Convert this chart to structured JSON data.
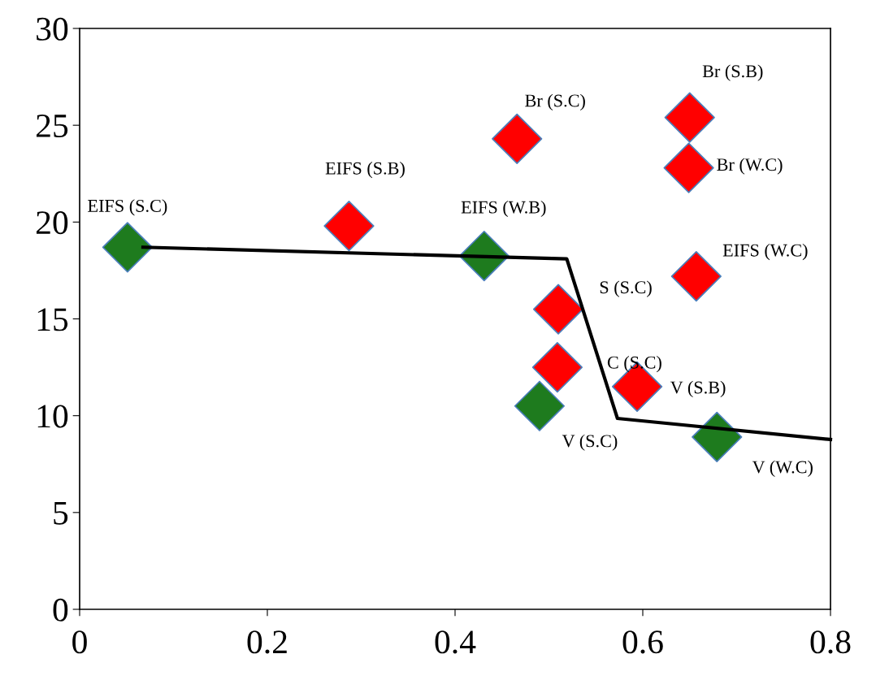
{
  "chart_data": {
    "type": "scatter",
    "xlim": [
      0,
      0.8
    ],
    "ylim": [
      0,
      30
    ],
    "xticks": [
      0,
      0.2,
      0.4,
      0.6,
      0.8
    ],
    "yticks": [
      0,
      5,
      10,
      15,
      20,
      25,
      30
    ],
    "grid": false,
    "legend": false,
    "series": [
      {
        "color": "#1e7b1e",
        "marker": "diamond",
        "x": [
          0.051,
          0.431,
          0.49,
          0.679
        ],
        "values": [
          18.7,
          18.25,
          10.5,
          8.9
        ]
      },
      {
        "color": "#ff0000",
        "marker": "diamond",
        "x": [
          0.287,
          0.466,
          0.65,
          0.649,
          0.657,
          0.51,
          0.509,
          0.594
        ],
        "values": [
          19.8,
          24.3,
          25.4,
          22.8,
          17.2,
          15.5,
          12.5,
          11.5
        ]
      },
      {
        "type": "line",
        "color": "#000000",
        "x": [
          0.0675,
          0.519,
          0.573,
          0.8
        ],
        "values": [
          18.7,
          18.1,
          9.86,
          8.77
        ]
      }
    ],
    "annotations": [
      {
        "text": "EIFS (S.C)",
        "x": 0.051,
        "y": 18.7
      },
      {
        "text": "EIFS (W.B)",
        "x": 0.431,
        "y": 18.25
      },
      {
        "text": "V (S.C)",
        "x": 0.49,
        "y": 10.5
      },
      {
        "text": "V (W.C)",
        "x": 0.679,
        "y": 8.9
      },
      {
        "text": "EIFS (S.B)",
        "x": 0.287,
        "y": 19.8
      },
      {
        "text": "Br (S.C)",
        "x": 0.466,
        "y": 24.3
      },
      {
        "text": "Br (S.B)",
        "x": 0.65,
        "y": 25.4
      },
      {
        "text": "Br (W.C)",
        "x": 0.649,
        "y": 22.8
      },
      {
        "text": "EIFS (W.C)",
        "x": 0.657,
        "y": 17.2
      },
      {
        "text": "S (S.C)",
        "x": 0.51,
        "y": 15.5
      },
      {
        "text": "C (S.C)",
        "x": 0.509,
        "y": 12.5
      },
      {
        "text": "V (S.B)",
        "x": 0.594,
        "y": 11.5
      }
    ]
  }
}
